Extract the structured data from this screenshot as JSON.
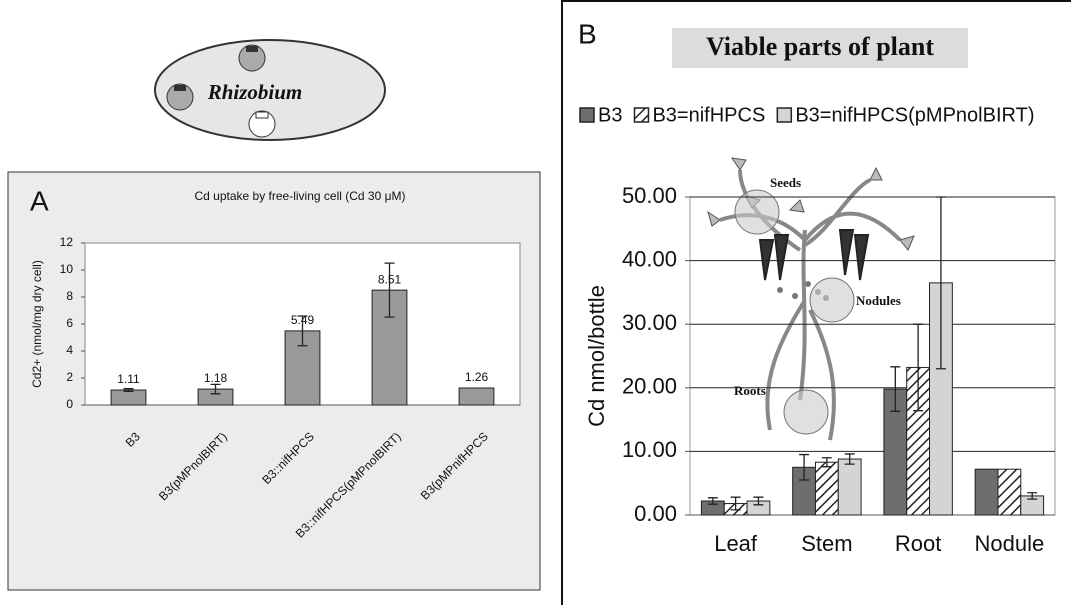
{
  "chart_data": [
    {
      "type": "bar",
      "panel": "A",
      "title": "Cd uptake by free-living cell (Cd 30 μM)",
      "annotation": "Rhizobium",
      "ylabel": "Cd2+ (nmol/mg dry cell)",
      "categories": [
        "B3",
        "B3(pMPnolBIRT)",
        "B3::nifHPCS",
        "B3::nifHPCS(pMPnolBIRT)",
        "B3(pMPnifHPCS"
      ],
      "values": [
        1.11,
        1.18,
        5.49,
        8.51,
        1.26
      ],
      "errors": [
        0.1,
        0.35,
        1.1,
        2.0,
        null
      ],
      "color": "#9a9a9a",
      "ylim": [
        0,
        12
      ],
      "yticks": [
        0,
        2,
        4,
        6,
        8,
        10,
        12
      ],
      "grid": false
    },
    {
      "type": "bar",
      "panel": "B",
      "title": "Viable parts of plant",
      "ylabel": "Cd nmol/bottle",
      "annotations": [
        "Seeds",
        "Nodules",
        "Roots"
      ],
      "categories": [
        "Leaf",
        "Stem",
        "Root",
        "Nodule"
      ],
      "series": [
        {
          "name": "B3",
          "color": "#6e6e6e",
          "values": [
            2.2,
            7.5,
            19.8,
            7.2
          ],
          "errors": [
            0.5,
            2.0,
            3.5,
            null
          ]
        },
        {
          "name": "B3=nifHPCS",
          "color": "#ffffff",
          "hatch": true,
          "values": [
            1.8,
            8.3,
            23.2,
            7.2
          ],
          "errors": [
            1.0,
            0.7,
            6.8,
            null
          ]
        },
        {
          "name": "B3=nifHPCS(pMPnolBIRT)",
          "color": "#d4d4d4",
          "values": [
            2.2,
            8.8,
            36.5,
            3.0
          ],
          "errors": [
            0.6,
            0.8,
            13.5,
            0.5
          ]
        }
      ],
      "ylim": [
        0,
        50
      ],
      "yticks": [
        {
          "value": 0,
          "label": "0.00"
        },
        {
          "value": 10,
          "label": "10.00"
        },
        {
          "value": 20,
          "label": "20.00"
        },
        {
          "value": 30,
          "label": "30.00"
        },
        {
          "value": 40,
          "label": "40.00"
        },
        {
          "value": 50,
          "label": "50.00"
        }
      ],
      "grid": true,
      "legend": "top"
    }
  ]
}
